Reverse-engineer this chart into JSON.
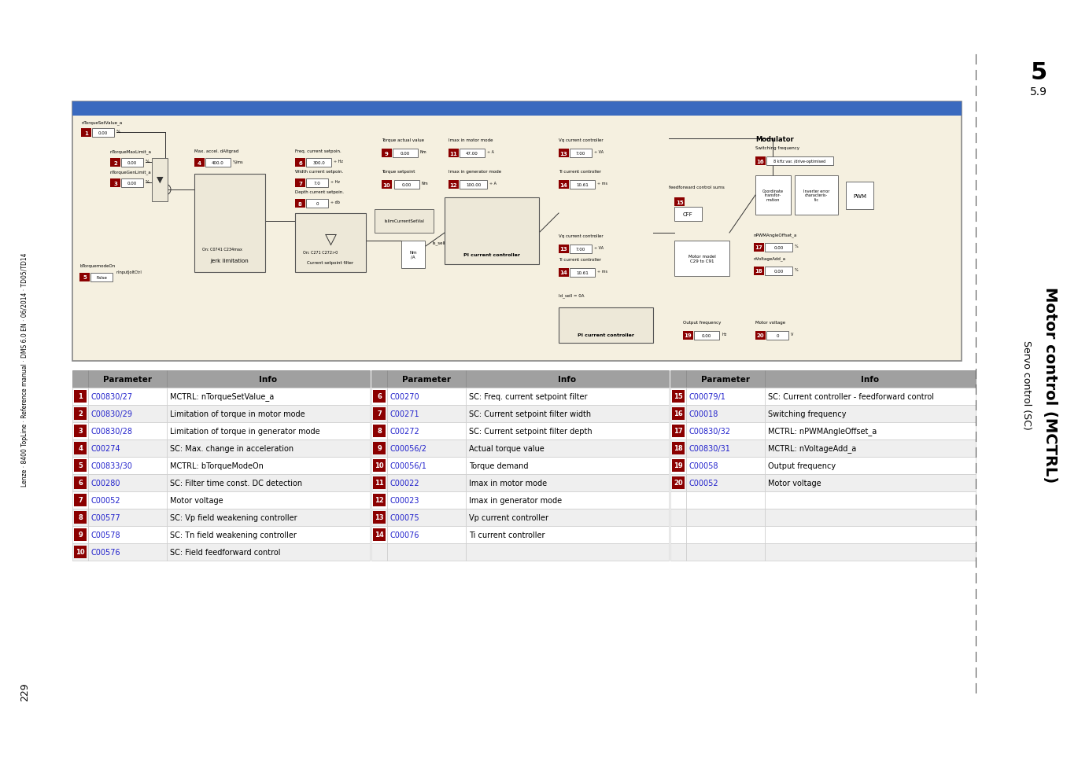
{
  "page_bg": "#ffffff",
  "title_main": "Motor control (MCTRL)",
  "title_sub": "Servo control (SC)",
  "section_num": "5",
  "section_sub": "5.9",
  "page_num": "229",
  "sidebar_text": "Lenze · 8400 TopLine · Reference manual · DMS 6.0 EN · 06/2014 · TD05/TD14",
  "diagram_bg": "#f5f0e0",
  "diagram_inner_bg": "#ede8d8",
  "diagram_border_color": "#aaaaaa",
  "diagram_header_bg": "#3a6abf",
  "table_header_bg": "#a0a0a0",
  "table_row_even": "#ffffff",
  "table_row_odd": "#efefef",
  "num_badge_bg": "#8b0000",
  "link_color": "#2222cc",
  "dashed_line_color": "#555555",
  "col1_params": [
    [
      "1",
      "C00830/27",
      "MCTRL: nTorqueSetValue_a"
    ],
    [
      "2",
      "C00830/29",
      "Limitation of torque in motor mode"
    ],
    [
      "3",
      "C00830/28",
      "Limitation of torque in generator mode"
    ],
    [
      "4",
      "C00274",
      "SC: Max. change in acceleration"
    ],
    [
      "5",
      "C00833/30",
      "MCTRL: bTorqueModeOn"
    ],
    [
      "6",
      "C00280",
      "SC: Filter time const. DC detection"
    ],
    [
      "7",
      "C00052",
      "Motor voltage"
    ],
    [
      "8",
      "C00577",
      "SC: Vp field weakening controller"
    ],
    [
      "9",
      "C00578",
      "SC: Tn field weakening controller"
    ],
    [
      "10",
      "C00576",
      "SC: Field feedforward control"
    ]
  ],
  "col2_params": [
    [
      "6",
      "C00270",
      "SC: Freq. current setpoint filter"
    ],
    [
      "7",
      "C00271",
      "SC: Current setpoint filter width"
    ],
    [
      "8",
      "C00272",
      "SC: Current setpoint filter depth"
    ],
    [
      "9",
      "C00056/2",
      "Actual torque value"
    ],
    [
      "10",
      "C00056/1",
      "Torque demand"
    ],
    [
      "11",
      "C00022",
      "Imax in motor mode"
    ],
    [
      "12",
      "C00023",
      "Imax in generator mode"
    ],
    [
      "13",
      "C00075",
      "Vp current controller"
    ],
    [
      "14",
      "C00076",
      "Ti current controller"
    ],
    [
      "",
      "",
      ""
    ]
  ],
  "col3_params": [
    [
      "15",
      "C00079/1",
      "SC: Current controller - feedforward control"
    ],
    [
      "16",
      "C00018",
      "Switching frequency"
    ],
    [
      "17",
      "C00830/32",
      "MCTRL: nPWMAngleOffset_a"
    ],
    [
      "18",
      "C00830/31",
      "MCTRL: nVoltageAdd_a"
    ],
    [
      "19",
      "C00058",
      "Output frequency"
    ],
    [
      "20",
      "C00052",
      "Motor voltage"
    ],
    [
      "",
      "",
      ""
    ],
    [
      "",
      "",
      ""
    ],
    [
      "",
      "",
      ""
    ],
    [
      "",
      "",
      ""
    ]
  ]
}
